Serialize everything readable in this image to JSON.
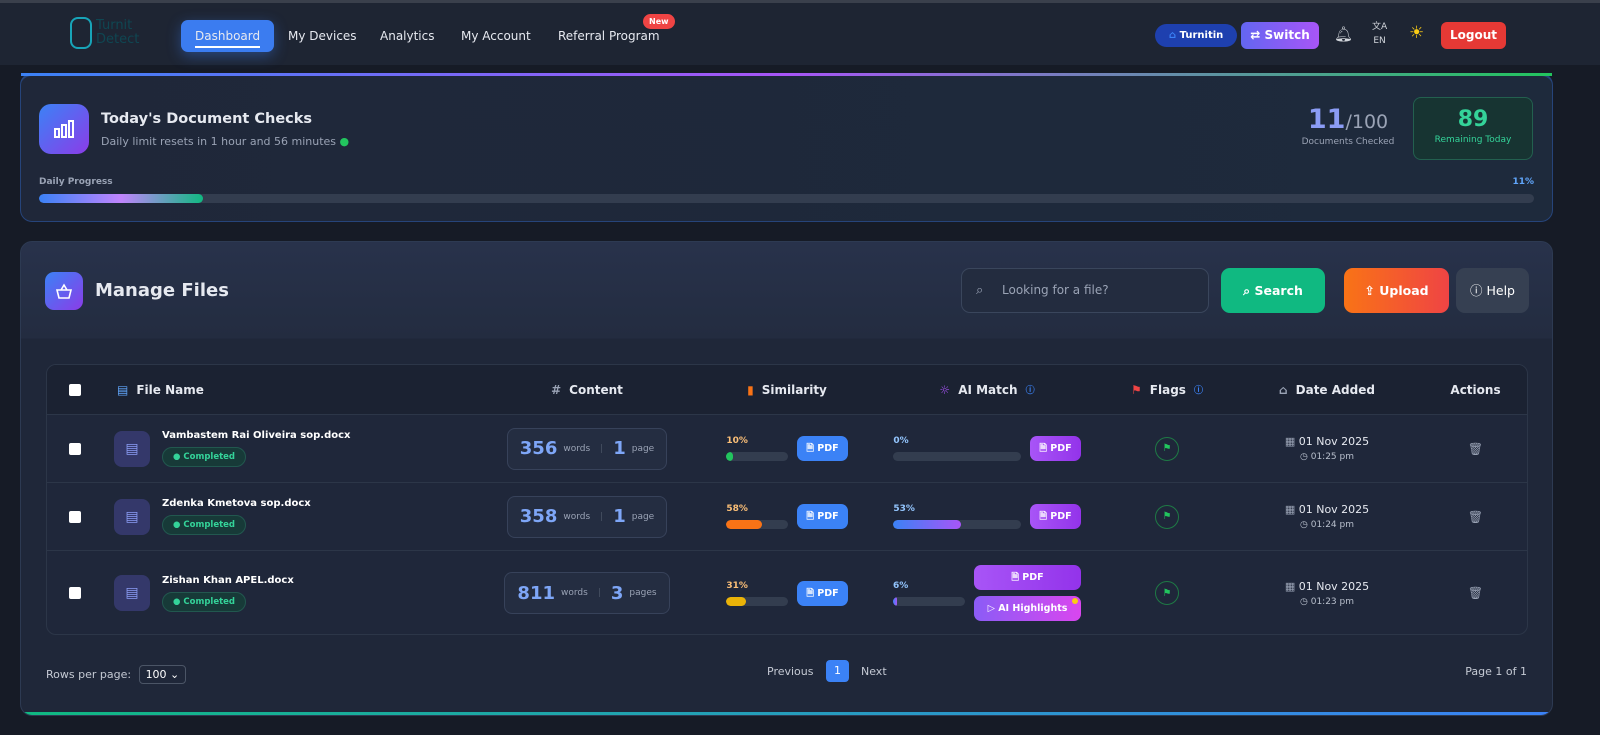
{
  "nav": {
    "logo_line1": "Turnit",
    "logo_line2": "Detect",
    "items": [
      "Dashboard",
      "My Devices",
      "Analytics",
      "My Account",
      "Referral Program"
    ],
    "new_badge": "New",
    "turnitin": "Turnitin",
    "switch": "Switch",
    "language": "EN",
    "logout": "Logout"
  },
  "checks": {
    "title": "Today's Document Checks",
    "subtitle": "Daily limit resets in 1 hour and 56 minutes",
    "checked": "11",
    "limit": "/100",
    "checked_label": "Documents Checked",
    "remaining": "89",
    "remaining_label": "Remaining Today",
    "progress_label": "Daily Progress",
    "progress_text": "11%",
    "progress_value": 11
  },
  "files": {
    "title": "Manage Files",
    "search_placeholder": "Looking for a file?",
    "search": "Search",
    "upload": "Upload",
    "help": "Help",
    "columns": [
      "File Name",
      "Content",
      "Similarity",
      "AI Match",
      "Flags",
      "Date Added",
      "Actions"
    ],
    "rows": [
      {
        "name": "Vambastem Rai Oliveira sop.docx",
        "status": "Completed",
        "words": "356",
        "words_label": "words",
        "pages": "1",
        "pages_label": "page",
        "similarity": "10%",
        "sim_value": 10,
        "sim_color": "#22c55e",
        "ai": "0%",
        "ai_value": 0,
        "date": "01 Nov 2025",
        "time": "01:25 pm"
      },
      {
        "name": "Zdenka Kmetova sop.docx",
        "status": "Completed",
        "words": "358",
        "words_label": "words",
        "pages": "1",
        "pages_label": "page",
        "similarity": "58%",
        "sim_value": 58,
        "sim_color": "#f97316",
        "ai": "53%",
        "ai_value": 53,
        "date": "01 Nov 2025",
        "time": "01:24 pm"
      },
      {
        "name": "Zishan Khan APEL.docx",
        "status": "Completed",
        "words": "811",
        "words_label": "words",
        "pages": "3",
        "pages_label": "pages",
        "similarity": "31%",
        "sim_value": 31,
        "sim_color": "#eab308",
        "ai": "6%",
        "ai_value": 6,
        "date": "01 Nov 2025",
        "time": "01:23 pm",
        "ai_highlights": "AI Highlights"
      }
    ],
    "pdf": "PDF",
    "rows_per_page_label": "Rows per page:",
    "rows_per_page": "100",
    "previous": "Previous",
    "page": "1",
    "next": "Next",
    "page_info": "Page 1 of 1"
  }
}
